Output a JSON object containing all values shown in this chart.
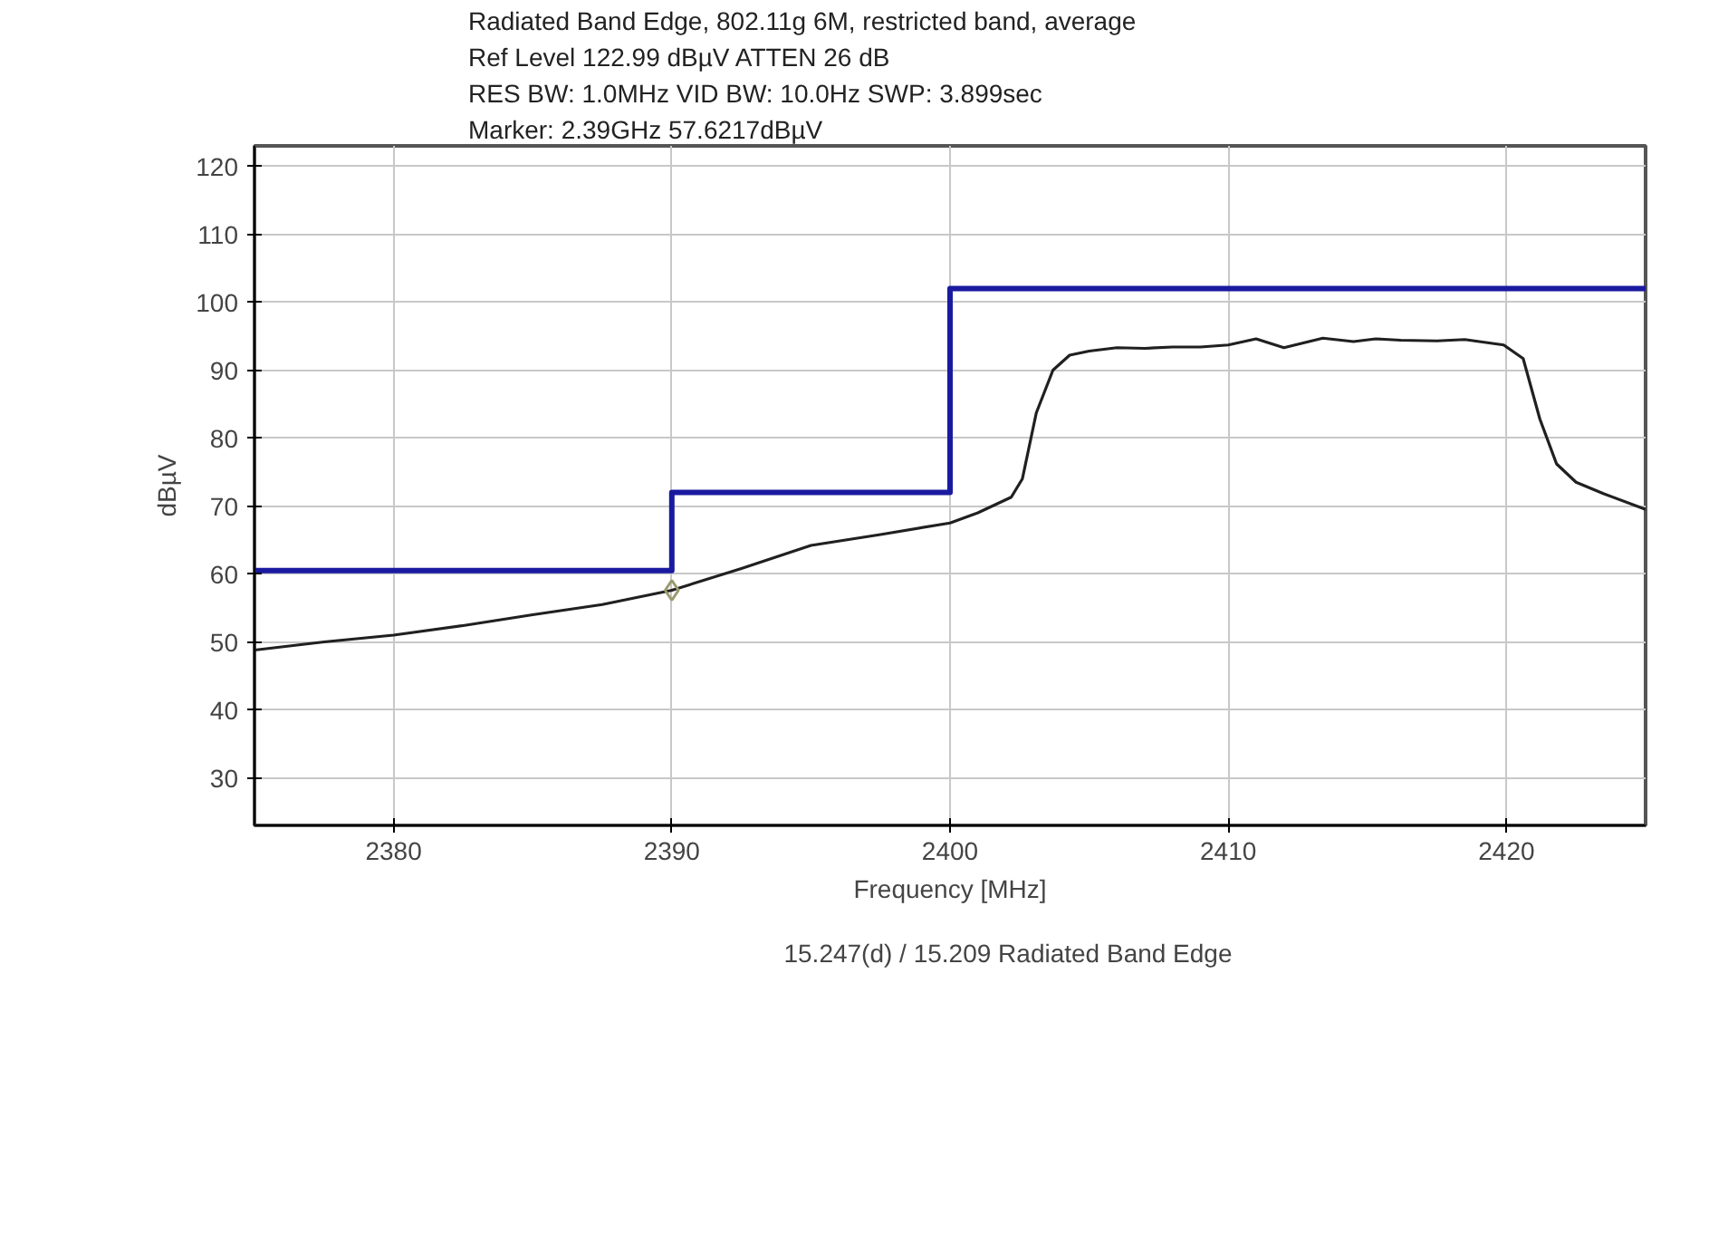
{
  "chart_data": {
    "type": "line",
    "xlabel": "Frequency [MHz]",
    "ylabel": "dBµV",
    "annotations": [
      "Radiated Band Edge, 802.11g 6M, restricted band, average",
      "Ref Level 122.99 dBµV    ATTEN 26 dB",
      "RES BW: 1.0MHz  VID BW: 10.0Hz  SWP: 3.899sec",
      "Marker: 2.39GHz  57.6217dBµV"
    ],
    "xlim": [
      2375,
      2425
    ],
    "ylim": [
      23,
      123
    ],
    "xticks": [
      2380,
      2390,
      2400,
      2410,
      2420
    ],
    "yticks": [
      30,
      40,
      50,
      60,
      70,
      80,
      90,
      100,
      110,
      120
    ],
    "grid": true,
    "legend": "bottom",
    "series": [
      {
        "name": "15.247(d) / 15.209 Radiated Band Edge",
        "type": "step",
        "color": "#1a1aa0",
        "x": [
          2375,
          2390,
          2400,
          2425
        ],
        "values": [
          60.5,
          72,
          102,
          102
        ]
      },
      {
        "type": "line",
        "color": "#202020",
        "x": [
          2375,
          2377.5,
          2380,
          2382.5,
          2385,
          2387.5,
          2390,
          2392.5,
          2395,
          2397.5,
          2400,
          2401,
          2402.2,
          2402.6,
          2403.1,
          2403.7,
          2404.3,
          2405,
          2406,
          2407,
          2408,
          2409,
          2410,
          2411,
          2412,
          2413.4,
          2414.5,
          2415.3,
          2416.2,
          2417.5,
          2418.5,
          2419.9,
          2420.6,
          2421.2,
          2421.8,
          2422.5,
          2423.5,
          2425
        ],
        "values": [
          48.8,
          50,
          51,
          52.4,
          54,
          55.5,
          57.6,
          60.8,
          64.2,
          65.8,
          67.5,
          69,
          71.3,
          74,
          83.7,
          90,
          92.2,
          92.8,
          93.3,
          93.2,
          93.4,
          93.4,
          93.7,
          94.6,
          93.3,
          94.7,
          94.2,
          94.6,
          94.4,
          94.3,
          94.5,
          93.7,
          91.7,
          82.8,
          76.2,
          73.5,
          71.8,
          69.5
        ]
      },
      {
        "type": "scatter",
        "marker": "diamond",
        "color": "#9a9a70",
        "x": [
          2390
        ],
        "values": [
          57.6
        ]
      }
    ]
  }
}
